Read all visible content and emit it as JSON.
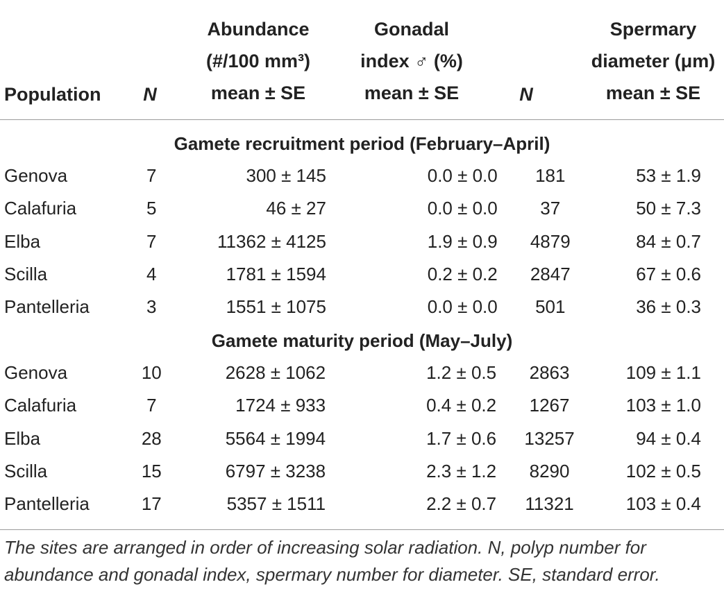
{
  "headers": {
    "population": "Population",
    "n1": "N",
    "abundance": [
      "Abundance",
      "(#/100 mm³)",
      "mean ± SE"
    ],
    "gonadal": [
      "Gonadal",
      "index ♂ (%)",
      "mean ± SE"
    ],
    "n2": "N",
    "spermary": [
      "Spermary",
      "diameter (μm)",
      "mean ± SE"
    ]
  },
  "sections": [
    {
      "title": "Gamete recruitment period (February–April)",
      "rows": [
        {
          "population": "Genova",
          "n1": "7",
          "abundance": "300 ± 145",
          "gonadal": "0.0 ± 0.0",
          "n2": "181",
          "spermary": "53 ± 1.9"
        },
        {
          "population": "Calafuria",
          "n1": "5",
          "abundance": "46 ± 27",
          "gonadal": "0.0 ± 0.0",
          "n2": "37",
          "spermary": "50 ± 7.3"
        },
        {
          "population": "Elba",
          "n1": "7",
          "abundance": "11362 ± 4125",
          "gonadal": "1.9 ± 0.9",
          "n2": "4879",
          "spermary": "84 ± 0.7"
        },
        {
          "population": "Scilla",
          "n1": "4",
          "abundance": "1781 ± 1594",
          "gonadal": "0.2 ± 0.2",
          "n2": "2847",
          "spermary": "67 ± 0.6"
        },
        {
          "population": "Pantelleria",
          "n1": "3",
          "abundance": "1551 ± 1075",
          "gonadal": "0.0 ± 0.0",
          "n2": "501",
          "spermary": "36 ± 0.3"
        }
      ]
    },
    {
      "title": "Gamete maturity period (May–July)",
      "rows": [
        {
          "population": "Genova",
          "n1": "10",
          "abundance": "2628 ± 1062",
          "gonadal": "1.2 ± 0.5",
          "n2": "2863",
          "spermary": "109 ± 1.1"
        },
        {
          "population": "Calafuria",
          "n1": "7",
          "abundance": "1724 ± 933",
          "gonadal": "0.4 ± 0.2",
          "n2": "1267",
          "spermary": "103 ± 1.0"
        },
        {
          "population": "Elba",
          "n1": "28",
          "abundance": "5564 ± 1994",
          "gonadal": "1.7 ± 0.6",
          "n2": "13257",
          "spermary": "94 ± 0.4"
        },
        {
          "population": "Scilla",
          "n1": "15",
          "abundance": "6797 ± 3238",
          "gonadal": "2.3 ± 1.2",
          "n2": "8290",
          "spermary": "102 ± 0.5"
        },
        {
          "population": "Pantelleria",
          "n1": "17",
          "abundance": "5357 ± 1511",
          "gonadal": "2.2 ± 0.7",
          "n2": "11321",
          "spermary": "103 ± 0.4"
        }
      ]
    }
  ],
  "footnote": "The sites are arranged in order of increasing solar radiation. N, polyp number for abundance and gonadal index, spermary number for diameter. SE, standard error."
}
